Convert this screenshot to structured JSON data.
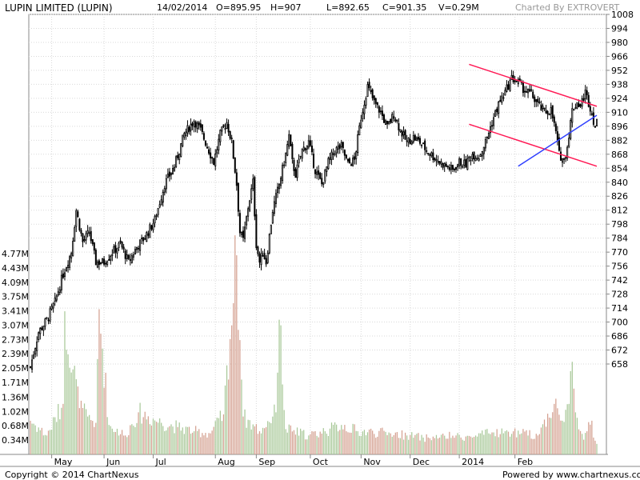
{
  "header": {
    "title": "LUPIN LIMITED (LUPIN)",
    "date": "14/02/2014",
    "open": "O=895.95",
    "high": "H=907",
    "low": "L=892.65",
    "close": "C=901.35",
    "volume": "V=0.29M",
    "charted_by": "Charted By EXTROVERT"
  },
  "footer": {
    "copyright": "Copyright © 2014 ChartNexus",
    "powered_by": "Powered by www.chartnexus.com"
  },
  "colors": {
    "candle": "#000000",
    "volume_up": "#a8c898",
    "volume_down": "#d4a090",
    "channel_red": "#ff1a55",
    "trend_blue": "#3040ff",
    "grid": "#d9d9d9"
  },
  "chart_data": {
    "type": "candlestick",
    "price_axis": {
      "ticks": [
        1008,
        994,
        980,
        966,
        952,
        938,
        924,
        910,
        896,
        882,
        868,
        854,
        840,
        826,
        812,
        798,
        784,
        770,
        756,
        742,
        728,
        714,
        700,
        686,
        672,
        658
      ],
      "ylim": [
        648,
        1010
      ]
    },
    "volume_axis": {
      "ticks": [
        "4.77M",
        "4.43M",
        "4.09M",
        "3.75M",
        "3.41M",
        "3.07M",
        "2.73M",
        "2.39M",
        "2.05M",
        "1.71M",
        "1.36M",
        "1.02M",
        "0.68M",
        "0.34M"
      ],
      "ylim_millions": [
        0,
        5.11
      ]
    },
    "x_axis": {
      "ticks": [
        "May",
        "Jun",
        "Jul",
        "Aug",
        "Sep",
        "Oct",
        "Nov",
        "Dec",
        "2014",
        "Feb"
      ]
    },
    "series_anchors": [
      [
        0,
        655
      ],
      [
        5,
        690
      ],
      [
        10,
        702
      ],
      [
        15,
        720
      ],
      [
        20,
        748
      ],
      [
        25,
        770
      ],
      [
        28,
        812
      ],
      [
        32,
        780
      ],
      [
        36,
        790
      ],
      [
        40,
        760
      ],
      [
        45,
        760
      ],
      [
        50,
        770
      ],
      [
        55,
        778
      ],
      [
        60,
        760
      ],
      [
        65,
        775
      ],
      [
        70,
        785
      ],
      [
        76,
        802
      ],
      [
        82,
        838
      ],
      [
        88,
        856
      ],
      [
        94,
        888
      ],
      [
        100,
        902
      ],
      [
        104,
        892
      ],
      [
        108,
        876
      ],
      [
        112,
        860
      ],
      [
        116,
        888
      ],
      [
        120,
        900
      ],
      [
        123,
        880
      ],
      [
        126,
        838
      ],
      [
        128,
        790
      ],
      [
        130,
        782
      ],
      [
        133,
        815
      ],
      [
        136,
        840
      ],
      [
        138,
        778
      ],
      [
        140,
        760
      ],
      [
        142,
        770
      ],
      [
        144,
        760
      ],
      [
        148,
        812
      ],
      [
        152,
        838
      ],
      [
        156,
        868
      ],
      [
        158,
        886
      ],
      [
        160,
        860
      ],
      [
        162,
        848
      ],
      [
        166,
        872
      ],
      [
        170,
        880
      ],
      [
        174,
        852
      ],
      [
        178,
        838
      ],
      [
        182,
        860
      ],
      [
        186,
        872
      ],
      [
        190,
        876
      ],
      [
        194,
        858
      ],
      [
        198,
        862
      ],
      [
        202,
        905
      ],
      [
        206,
        936
      ],
      [
        210,
        920
      ],
      [
        214,
        910
      ],
      [
        218,
        895
      ],
      [
        222,
        908
      ],
      [
        226,
        892
      ],
      [
        230,
        880
      ],
      [
        234,
        885
      ],
      [
        238,
        880
      ],
      [
        242,
        872
      ],
      [
        246,
        866
      ],
      [
        250,
        860
      ],
      [
        254,
        856
      ],
      [
        258,
        852
      ],
      [
        262,
        860
      ],
      [
        266,
        858
      ],
      [
        270,
        868
      ],
      [
        274,
        866
      ],
      [
        278,
        880
      ],
      [
        282,
        900
      ],
      [
        286,
        918
      ],
      [
        290,
        930
      ],
      [
        294,
        944
      ],
      [
        298,
        940
      ],
      [
        302,
        932
      ],
      [
        306,
        928
      ],
      [
        310,
        918
      ],
      [
        314,
        910
      ],
      [
        318,
        912
      ],
      [
        321,
        890
      ],
      [
        323,
        868
      ],
      [
        326,
        862
      ],
      [
        328,
        876
      ],
      [
        331,
        912
      ],
      [
        334,
        920
      ],
      [
        336,
        916
      ],
      [
        339,
        930
      ],
      [
        342,
        915
      ],
      [
        345,
        896
      ],
      [
        346,
        899
      ]
    ],
    "volume_profile": [
      [
        0,
        0.8
      ],
      [
        10,
        0.45
      ],
      [
        20,
        1.2
      ],
      [
        21,
        3.4
      ],
      [
        30,
        1.1
      ],
      [
        35,
        0.9
      ],
      [
        40,
        0.75
      ],
      [
        42,
        3.45
      ],
      [
        48,
        0.7
      ],
      [
        58,
        0.45
      ],
      [
        66,
        1.0
      ],
      [
        80,
        0.75
      ],
      [
        90,
        0.65
      ],
      [
        100,
        0.55
      ],
      [
        110,
        0.5
      ],
      [
        118,
        0.95
      ],
      [
        126,
        4.73
      ],
      [
        130,
        0.9
      ],
      [
        140,
        0.55
      ],
      [
        150,
        1.0
      ],
      [
        152,
        3.2
      ],
      [
        156,
        0.6
      ],
      [
        170,
        0.45
      ],
      [
        180,
        0.55
      ],
      [
        190,
        0.7
      ],
      [
        200,
        0.55
      ],
      [
        220,
        0.5
      ],
      [
        230,
        0.45
      ],
      [
        240,
        0.4
      ],
      [
        250,
        0.4
      ],
      [
        260,
        0.45
      ],
      [
        270,
        0.4
      ],
      [
        280,
        0.5
      ],
      [
        290,
        0.55
      ],
      [
        300,
        0.5
      ],
      [
        310,
        0.45
      ],
      [
        320,
        1.2
      ],
      [
        325,
        0.8
      ],
      [
        329,
        1.2
      ],
      [
        331,
        2.2
      ],
      [
        333,
        1.0
      ],
      [
        338,
        0.35
      ],
      [
        340,
        0.55
      ],
      [
        343,
        0.8
      ],
      [
        344,
        0.4
      ],
      [
        346,
        0.25
      ]
    ],
    "month_starts": [
      13,
      45,
      75,
      113,
      138,
      171,
      202,
      232,
      262,
      296
    ],
    "channel_upper": [
      [
        268,
        958
      ],
      [
        346,
        916
      ]
    ],
    "channel_lower": [
      [
        268,
        898
      ],
      [
        346,
        856
      ]
    ],
    "trendline": [
      [
        298,
        856
      ],
      [
        346,
        907
      ]
    ]
  }
}
